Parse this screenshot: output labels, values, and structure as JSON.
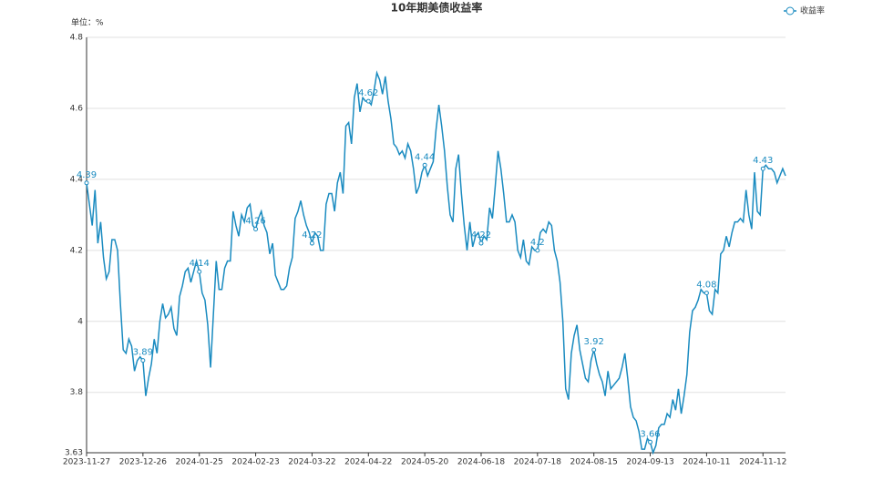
{
  "chart_data": {
    "type": "line",
    "title": "10年期美债收益率",
    "y_unit_label": "单位：%",
    "categories": [
      "2023-11-27",
      null,
      null,
      null,
      null,
      null,
      null,
      null,
      null,
      null,
      null,
      null,
      null,
      null,
      null,
      null,
      null,
      null,
      null,
      null,
      "2023-12-26",
      null,
      null,
      null,
      null,
      null,
      null,
      null,
      null,
      null,
      null,
      null,
      null,
      null,
      null,
      null,
      null,
      null,
      null,
      null,
      "2024-01-25",
      null,
      null,
      null,
      null,
      null,
      null,
      null,
      null,
      null,
      null,
      null,
      null,
      null,
      null,
      null,
      null,
      null,
      null,
      null,
      "2024-02-23",
      null,
      null,
      null,
      null,
      null,
      null,
      null,
      null,
      null,
      null,
      null,
      null,
      null,
      null,
      null,
      null,
      null,
      null,
      null,
      "2024-03-22",
      null,
      null,
      null,
      null,
      null,
      null,
      null,
      null,
      null,
      null,
      null,
      null,
      null,
      null,
      null,
      null,
      null,
      null,
      null,
      "2024-04-22",
      null,
      null,
      null,
      null,
      null,
      null,
      null,
      null,
      null,
      null,
      null,
      null,
      null,
      null,
      null,
      null,
      null,
      null,
      null,
      "2024-05-20",
      null,
      null,
      null,
      null,
      null,
      null,
      null,
      null,
      null,
      null,
      null,
      null,
      null,
      null,
      null,
      null,
      null,
      null,
      null,
      "2024-06-18",
      null,
      null,
      null,
      null,
      null,
      null,
      null,
      null,
      null,
      null,
      null,
      null,
      null,
      null,
      null,
      null,
      null,
      null,
      null,
      "2024-07-18",
      null,
      null,
      null,
      null,
      null,
      null,
      null,
      null,
      null,
      null,
      null,
      null,
      null,
      null,
      null,
      null,
      null,
      null,
      null,
      "2024-08-15",
      null,
      null,
      null,
      null,
      null,
      null,
      null,
      null,
      null,
      null,
      null,
      null,
      null,
      null,
      null,
      null,
      null,
      null,
      null,
      "2024-09-13",
      null,
      null,
      null,
      null,
      null,
      null,
      null,
      null,
      null,
      null,
      null,
      null,
      null,
      null,
      null,
      null,
      null,
      null,
      null,
      "2024-10-11",
      null,
      null,
      null,
      null,
      null,
      null,
      null,
      null,
      null,
      null,
      null,
      null,
      null,
      null,
      null,
      null,
      null,
      null,
      null,
      "2024-11-12",
      null,
      null,
      null,
      null,
      null,
      null,
      null,
      null
    ],
    "series": [
      {
        "name": "收益率",
        "color": "#1a8bc0",
        "values": [
          4.39,
          4.33,
          4.27,
          4.37,
          4.22,
          4.28,
          4.18,
          4.12,
          4.14,
          4.23,
          4.23,
          4.2,
          4.05,
          3.92,
          3.91,
          3.95,
          3.93,
          3.86,
          3.89,
          3.9,
          3.89,
          3.79,
          3.84,
          3.88,
          3.95,
          3.91,
          4.0,
          4.05,
          4.01,
          4.02,
          4.04,
          3.98,
          3.96,
          4.07,
          4.1,
          4.14,
          4.15,
          4.11,
          4.14,
          4.17,
          4.14,
          4.08,
          4.06,
          3.99,
          3.87,
          4.02,
          4.17,
          4.09,
          4.09,
          4.15,
          4.17,
          4.17,
          4.31,
          4.27,
          4.24,
          4.3,
          4.28,
          4.32,
          4.33,
          4.27,
          4.26,
          4.29,
          4.31,
          4.27,
          4.25,
          4.19,
          4.22,
          4.13,
          4.11,
          4.09,
          4.09,
          4.1,
          4.15,
          4.18,
          4.29,
          4.31,
          4.34,
          4.3,
          4.27,
          4.25,
          4.22,
          4.25,
          4.24,
          4.2,
          4.2,
          4.33,
          4.36,
          4.36,
          4.31,
          4.39,
          4.42,
          4.36,
          4.55,
          4.56,
          4.5,
          4.63,
          4.67,
          4.59,
          4.63,
          4.62,
          4.62,
          4.61,
          4.65,
          4.7,
          4.68,
          4.64,
          4.69,
          4.62,
          4.57,
          4.5,
          4.49,
          4.47,
          4.48,
          4.46,
          4.5,
          4.48,
          4.43,
          4.36,
          4.38,
          4.42,
          4.44,
          4.41,
          4.43,
          4.45,
          4.54,
          4.61,
          4.55,
          4.48,
          4.38,
          4.3,
          4.28,
          4.43,
          4.47,
          4.36,
          4.27,
          4.2,
          4.28,
          4.21,
          4.24,
          4.25,
          4.22,
          4.24,
          4.23,
          4.32,
          4.29,
          4.38,
          4.48,
          4.43,
          4.36,
          4.28,
          4.28,
          4.3,
          4.28,
          4.2,
          4.18,
          4.23,
          4.17,
          4.16,
          4.21,
          4.2,
          4.2,
          4.25,
          4.26,
          4.25,
          4.28,
          4.27,
          4.2,
          4.17,
          4.11,
          4.0,
          3.81,
          3.78,
          3.91,
          3.96,
          3.99,
          3.92,
          3.88,
          3.84,
          3.83,
          3.89,
          3.92,
          3.88,
          3.85,
          3.83,
          3.79,
          3.86,
          3.81,
          3.82,
          3.83,
          3.84,
          3.87,
          3.91,
          3.84,
          3.76,
          3.73,
          3.72,
          3.69,
          3.64,
          3.64,
          3.67,
          3.66,
          3.63,
          3.65,
          3.7,
          3.71,
          3.71,
          3.74,
          3.73,
          3.78,
          3.75,
          3.81,
          3.74,
          3.79,
          3.85,
          3.97,
          4.03,
          4.04,
          4.06,
          4.09,
          4.08,
          4.08,
          4.03,
          4.02,
          4.09,
          4.08,
          4.19,
          4.2,
          4.24,
          4.21,
          4.25,
          4.28,
          4.28,
          4.29,
          4.28,
          4.37,
          4.3,
          4.26,
          4.42,
          4.31,
          4.3,
          4.43,
          4.44,
          4.43,
          4.43,
          4.42,
          4.39,
          4.41,
          4.43,
          4.41
        ]
      }
    ],
    "ylim": [
      3.63,
      4.8
    ],
    "yticks": [
      3.63,
      3.8,
      4,
      4.2,
      4.4,
      4.6,
      4.8
    ],
    "grid": true,
    "legend": "top-right"
  }
}
